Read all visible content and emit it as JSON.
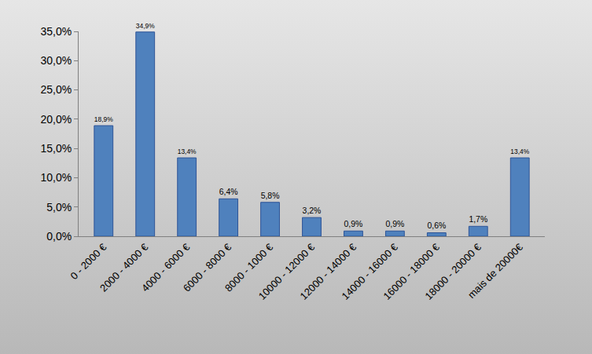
{
  "chart_data": {
    "type": "bar",
    "categories": [
      "0 - 2000 €",
      "2000 - 4000 €",
      "4000 - 6000 €",
      "6000 - 8000 €",
      "8000 - 1000 €",
      "10000 - 12000 €",
      "12000 - 14000 €",
      "14000 - 16000 €",
      "16000 - 18000 €",
      "18000 - 20000 €",
      "mais de 20000€"
    ],
    "values": [
      18.9,
      34.9,
      13.4,
      6.4,
      5.8,
      3.2,
      0.9,
      0.9,
      0.6,
      1.7,
      13.4
    ],
    "value_labels": [
      "18,9%",
      "34,9%",
      "13,4%",
      "6,4%",
      "5,8%",
      "3,2%",
      "0,9%",
      "0,9%",
      "0,6%",
      "1,7%",
      "13,4%"
    ],
    "data_labels": true,
    "color": "#4f81bd",
    "ylim": [
      0,
      35
    ],
    "yticks": [
      {
        "value": 0,
        "label": "0,0%"
      },
      {
        "value": 5,
        "label": "5,0%"
      },
      {
        "value": 10,
        "label": "10,0%"
      },
      {
        "value": 15,
        "label": "15,0%"
      },
      {
        "value": 20,
        "label": "20,0%"
      },
      {
        "value": 25,
        "label": "25,0%"
      },
      {
        "value": 30,
        "label": "30,0%"
      },
      {
        "value": 35,
        "label": "35,0%"
      }
    ],
    "grid": false
  }
}
